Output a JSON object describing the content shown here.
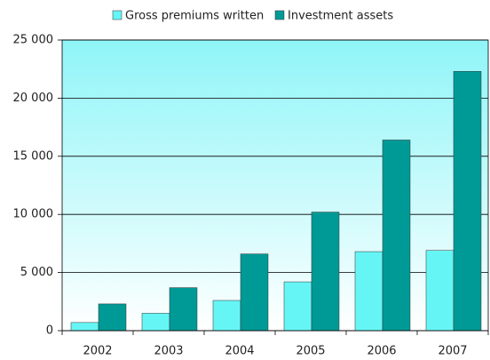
{
  "chart_data": {
    "type": "bar",
    "categories": [
      "2002",
      "2003",
      "2004",
      "2005",
      "2006",
      "2007"
    ],
    "series": [
      {
        "name": "Gross premiums written",
        "color": "#66f5f5",
        "values": [
          700,
          1500,
          2600,
          4200,
          6800,
          6900
        ]
      },
      {
        "name": "Investment assets",
        "color": "#009a96",
        "values": [
          2300,
          3700,
          6600,
          10200,
          16400,
          22300
        ]
      }
    ],
    "ylim": [
      0,
      25000
    ],
    "yticks": [
      0,
      {
        "value": 5000,
        "label": "5 000"
      },
      {
        "value": 10000,
        "label": "10 000"
      },
      {
        "value": 15000,
        "label": "15 000"
      },
      {
        "value": 20000,
        "label": "20 000"
      },
      {
        "value": 25000,
        "label": "25 000"
      }
    ],
    "grid": true,
    "legend": "top"
  }
}
